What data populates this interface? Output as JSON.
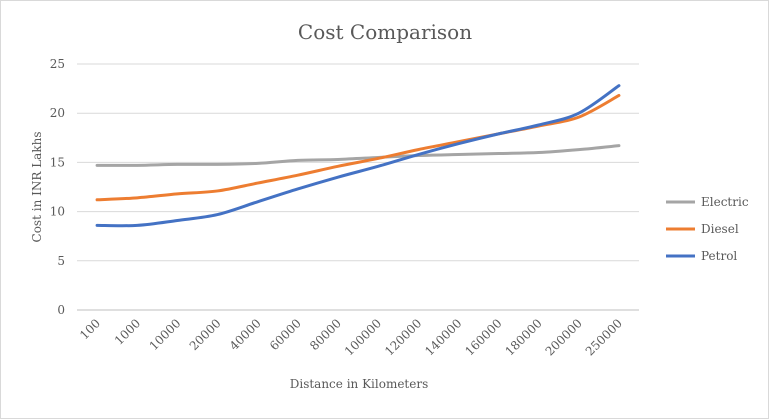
{
  "chart_data": {
    "type": "line",
    "title": "Cost Comparison",
    "xlabel": "Distance in Kilometers",
    "ylabel": "Cost in INR Lakhs",
    "categories": [
      "100",
      "1000",
      "10000",
      "20000",
      "40000",
      "60000",
      "80000",
      "100000",
      "120000",
      "140000",
      "160000",
      "180000",
      "200000",
      "250000"
    ],
    "ylim": [
      0,
      25
    ],
    "yticks": [
      0,
      5,
      10,
      15,
      20,
      25
    ],
    "grid": true,
    "legend_position": "right",
    "series": [
      {
        "name": "Electric",
        "color": "#a5a5a5",
        "values": [
          14.7,
          14.7,
          14.8,
          14.8,
          14.9,
          15.2,
          15.3,
          15.5,
          15.7,
          15.8,
          15.9,
          16.0,
          16.3,
          16.7
        ]
      },
      {
        "name": "Diesel",
        "color": "#ed7d31",
        "values": [
          11.2,
          11.4,
          11.8,
          12.1,
          12.9,
          13.7,
          14.6,
          15.4,
          16.3,
          17.1,
          17.9,
          18.7,
          19.6,
          21.8
        ]
      },
      {
        "name": "Petrol",
        "color": "#4472c4",
        "values": [
          8.6,
          8.6,
          9.1,
          9.7,
          11.0,
          12.3,
          13.5,
          14.6,
          15.8,
          16.9,
          17.9,
          18.8,
          20.0,
          22.8
        ]
      }
    ]
  }
}
